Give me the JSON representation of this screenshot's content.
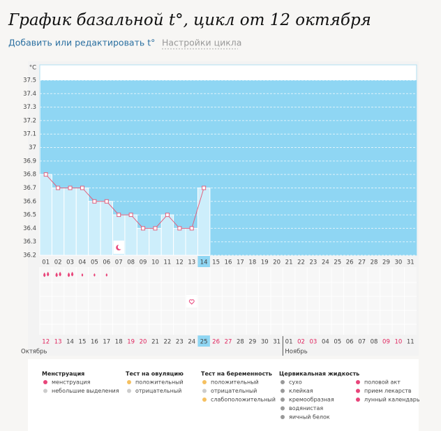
{
  "header": {
    "title": "График базальной t°, цикл от 12 октября",
    "links": [
      "Добавить или редактировать t°",
      "Настройки цикла"
    ]
  },
  "chart_data": {
    "type": "line",
    "ylabel": "°C",
    "categories": [
      "01",
      "02",
      "03",
      "04",
      "05",
      "06",
      "07",
      "08",
      "09",
      "10",
      "11",
      "12",
      "13",
      "14",
      "15",
      "16",
      "17",
      "18",
      "19",
      "20",
      "21",
      "22",
      "23",
      "24",
      "25",
      "26",
      "27",
      "28",
      "29",
      "30",
      "31"
    ],
    "series": [
      {
        "color": "#e0607e",
        "values": [
          36.8,
          36.7,
          36.7,
          36.7,
          36.6,
          36.6,
          36.5,
          36.5,
          36.4,
          36.4,
          36.5,
          36.4,
          36.4,
          36.7,
          null,
          null,
          null,
          null,
          null,
          null,
          null,
          null,
          null,
          null,
          null,
          null,
          null,
          null,
          null,
          null,
          null
        ]
      }
    ],
    "ylim": [
      36.2,
      37.5
    ],
    "yticks": [
      36.2,
      36.3,
      36.4,
      36.5,
      36.6,
      36.7,
      36.8,
      36.9,
      37,
      37.1,
      37.2,
      37.3,
      37.4,
      37.5
    ],
    "grid": true,
    "fill_color": "#8fd6f3",
    "column_color": "#cdeefb",
    "today_index": 13,
    "dates": [
      "12",
      "13",
      "14",
      "15",
      "16",
      "17",
      "18",
      "19",
      "20",
      "21",
      "22",
      "23",
      "24",
      "25",
      "26",
      "27",
      "28",
      "29",
      "30",
      "31",
      "01",
      "02",
      "03",
      "04",
      "05",
      "06",
      "07",
      "08",
      "09",
      "10",
      "11"
    ],
    "weekend_indices": [
      0,
      1,
      7,
      8,
      14,
      15,
      21,
      22,
      28,
      29
    ],
    "weekend_color": "#e0245e",
    "months": [
      "Октябрь",
      "Ноябрь"
    ],
    "month_start_indices": [
      0,
      20
    ],
    "day_marks": {
      "menstruation": [
        0,
        1,
        2
      ],
      "light_discharge": [
        3,
        4,
        5
      ],
      "lunar": [
        6
      ],
      "intercourse": [
        12
      ]
    }
  },
  "legend": [
    {
      "title": "Менструация",
      "items": [
        "менструация",
        "небольшие выделения"
      ]
    },
    {
      "title": "Тест на овуляцию",
      "items": [
        "положительный",
        "отрицательный"
      ]
    },
    {
      "title": "Тест на беременность",
      "items": [
        "положительный",
        "отрицательный",
        "слабоположительный"
      ]
    },
    {
      "title": "Цервикальная жидкость",
      "items": [
        "сухо",
        "клейкая",
        "кремообразная",
        "водянистая",
        "яичный белок"
      ]
    },
    {
      "items": [
        "половой акт",
        "прием лекарств",
        "лунный календарь"
      ]
    }
  ]
}
